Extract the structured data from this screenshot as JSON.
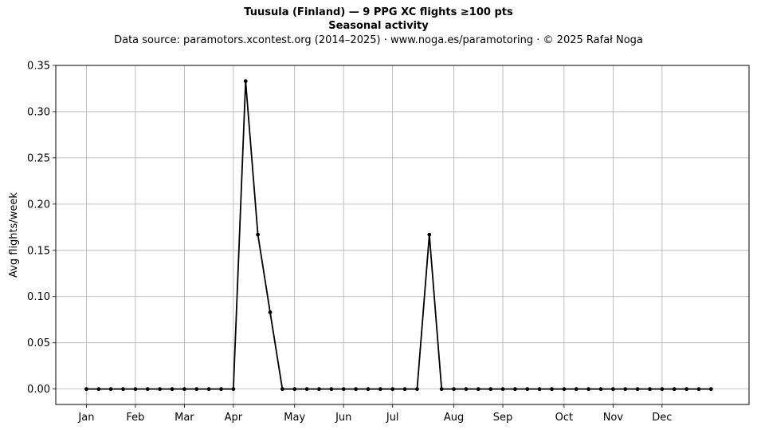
{
  "header": {
    "title": "Tuusula (Finland)  —  9 PPG XC flights ≥100 pts",
    "subtitle": "Seasonal activity",
    "source": "Data source: paramotors.xcontest.org (2014–2025)  ·  www.noga.es/paramotoring  ·  © 2025 Rafał Noga"
  },
  "chart_data": {
    "type": "line",
    "title": "Tuusula (Finland)  —  9 PPG XC flights ≥100 pts",
    "subtitle": "Seasonal activity",
    "xlabel": "",
    "ylabel": "Avg flights/week",
    "x_unit": "ISO week",
    "x_ticks": [
      {
        "label": "Jan",
        "week": 1
      },
      {
        "label": "Feb",
        "week": 5
      },
      {
        "label": "Mar",
        "week": 9
      },
      {
        "label": "Apr",
        "week": 13
      },
      {
        "label": "May",
        "week": 18
      },
      {
        "label": "Jun",
        "week": 22
      },
      {
        "label": "Jul",
        "week": 26
      },
      {
        "label": "Aug",
        "week": 31
      },
      {
        "label": "Sep",
        "week": 35
      },
      {
        "label": "Oct",
        "week": 40
      },
      {
        "label": "Nov",
        "week": 44
      },
      {
        "label": "Dec",
        "week": 48
      }
    ],
    "xlim": [
      -1.5,
      55.1
    ],
    "ylim": [
      -0.0167,
      0.35
    ],
    "y_ticks": [
      0.0,
      0.05,
      0.1,
      0.15,
      0.2,
      0.25,
      0.3,
      0.35
    ],
    "y_tick_labels": [
      "0.00",
      "0.05",
      "0.10",
      "0.15",
      "0.20",
      "0.25",
      "0.30",
      "0.35"
    ],
    "grid": true,
    "series": [
      {
        "color": "#000000",
        "marker": "dot",
        "x": [
          1,
          2,
          3,
          4,
          5,
          6,
          7,
          8,
          9,
          10,
          11,
          12,
          13,
          14,
          15,
          16,
          17,
          18,
          19,
          20,
          21,
          22,
          23,
          24,
          25,
          26,
          27,
          28,
          29,
          30,
          31,
          32,
          33,
          34,
          35,
          36,
          37,
          38,
          39,
          40,
          41,
          42,
          43,
          44,
          45,
          46,
          47,
          48,
          49,
          50,
          51,
          52
        ],
        "y": [
          0,
          0,
          0,
          0,
          0,
          0,
          0,
          0,
          0,
          0,
          0,
          0,
          0,
          0.333,
          0.167,
          0.083,
          0,
          0,
          0,
          0,
          0,
          0,
          0,
          0,
          0,
          0,
          0,
          0,
          0.167,
          0,
          0,
          0,
          0,
          0,
          0,
          0,
          0,
          0,
          0,
          0,
          0,
          0,
          0,
          0,
          0,
          0,
          0,
          0,
          0,
          0,
          0,
          0
        ]
      }
    ]
  }
}
